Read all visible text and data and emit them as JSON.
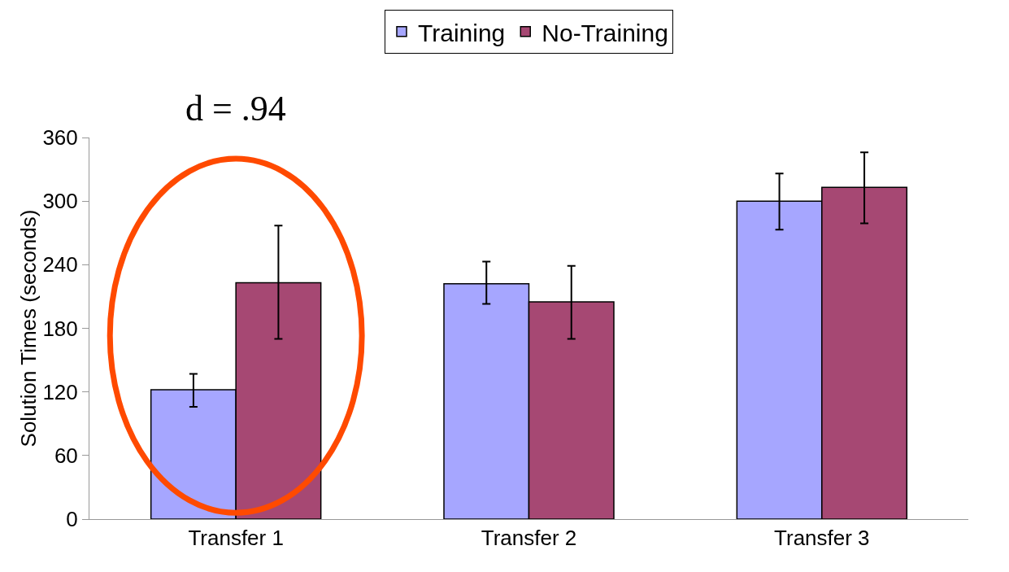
{
  "chart_data": {
    "type": "bar",
    "ylabel": "Solution Times (seconds)",
    "categories": [
      "Transfer 1",
      "Transfer 2",
      "Transfer 3"
    ],
    "series": [
      {
        "name": "Training",
        "color": "#a6a6ff",
        "values": [
          122,
          222,
          300
        ],
        "errors": [
          [
            106,
            137
          ],
          [
            203,
            243
          ],
          [
            273,
            326
          ]
        ]
      },
      {
        "name": "No-Training",
        "color": "#a64873",
        "values": [
          223,
          205,
          313
        ],
        "errors": [
          [
            170,
            277
          ],
          [
            170,
            239
          ],
          [
            279,
            346
          ]
        ]
      }
    ],
    "ylim": [
      0,
      360
    ],
    "yticks": [
      0,
      60,
      120,
      180,
      240,
      300,
      360
    ],
    "grid": false,
    "legend": "top",
    "annotations": [
      "d = .94"
    ]
  }
}
